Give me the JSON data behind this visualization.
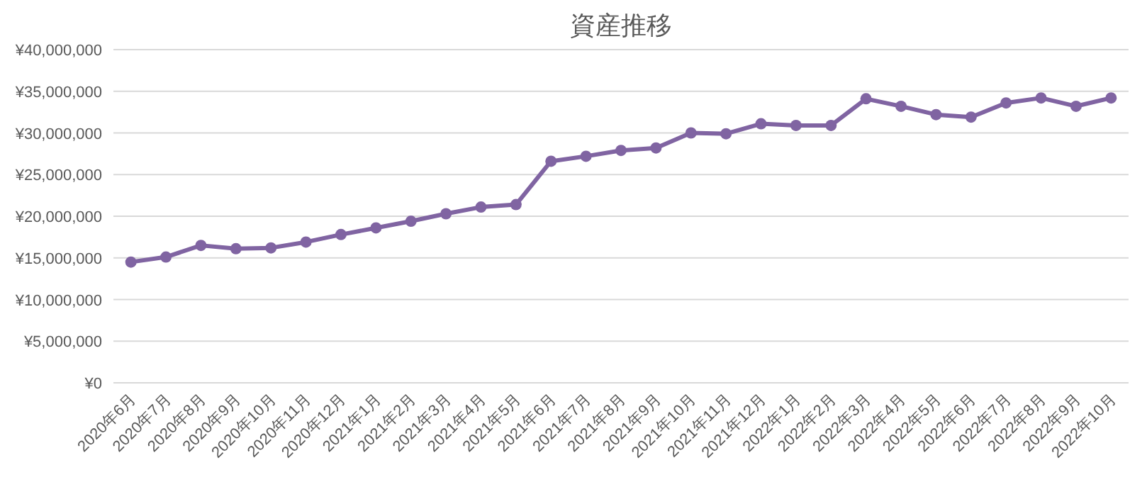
{
  "chart_data": {
    "type": "line",
    "title": "資産推移",
    "categories": [
      "2020年6月",
      "2020年7月",
      "2020年8月",
      "2020年9月",
      "2020年10月",
      "2020年11月",
      "2020年12月",
      "2021年1月",
      "2021年2月",
      "2021年3月",
      "2021年4月",
      "2021年5月",
      "2021年6月",
      "2021年7月",
      "2021年8月",
      "2021年9月",
      "2021年10月",
      "2021年11月",
      "2021年12月",
      "2022年1月",
      "2022年2月",
      "2022年3月",
      "2022年4月",
      "2022年5月",
      "2022年6月",
      "2022年7月",
      "2022年8月",
      "2022年9月",
      "2022年10月"
    ],
    "series": [
      {
        "color": "#8064a2",
        "values": [
          14500000,
          15100000,
          16500000,
          16100000,
          16200000,
          16900000,
          17800000,
          18600000,
          19400000,
          20300000,
          21100000,
          21400000,
          26600000,
          27200000,
          27900000,
          28200000,
          30000000,
          29900000,
          31100000,
          30900000,
          30900000,
          34100000,
          33200000,
          32200000,
          31900000,
          33600000,
          34200000,
          33200000,
          34200000
        ]
      }
    ],
    "ylim": [
      0,
      40000000
    ],
    "yticks": [
      {
        "value": 0,
        "label": "¥0"
      },
      {
        "value": 5000000,
        "label": "¥5,000,000"
      },
      {
        "value": 10000000,
        "label": "¥10,000,000"
      },
      {
        "value": 15000000,
        "label": "¥15,000,000"
      },
      {
        "value": 20000000,
        "label": "¥20,000,000"
      },
      {
        "value": 25000000,
        "label": "¥25,000,000"
      },
      {
        "value": 30000000,
        "label": "¥30,000,000"
      },
      {
        "value": 35000000,
        "label": "¥35,000,000"
      },
      {
        "value": 40000000,
        "label": "¥40,000,000"
      }
    ],
    "grid": "y",
    "marker": "circle",
    "line_style": "solid"
  }
}
